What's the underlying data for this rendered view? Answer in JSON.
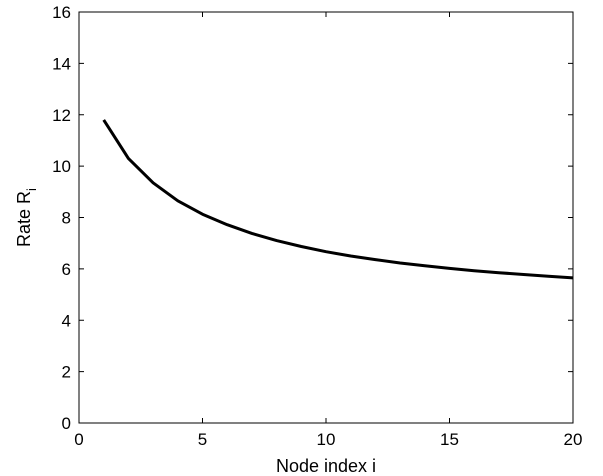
{
  "chart_data": {
    "type": "line",
    "xlabel": "Node index i",
    "ylabel": {
      "main": "Rate R",
      "subscript": "i"
    },
    "xlim": [
      0,
      20
    ],
    "ylim": [
      0,
      16
    ],
    "xticks": [
      0,
      5,
      10,
      15,
      20
    ],
    "xtick_labels": [
      "0",
      "5",
      "10",
      "15",
      "20"
    ],
    "yticks": [
      0,
      2,
      4,
      6,
      8,
      10,
      12,
      14,
      16
    ],
    "ytick_labels": [
      "0",
      "2",
      "4",
      "6",
      "8",
      "10",
      "12",
      "14",
      "16"
    ],
    "grid": false,
    "line_color": "#000000",
    "series": [
      {
        "x": [
          1,
          2,
          3,
          4,
          5,
          6,
          7,
          8,
          9,
          10,
          11,
          12,
          13,
          14,
          15,
          16,
          17,
          18,
          19,
          20
        ],
        "y": [
          11.8,
          10.3,
          9.35,
          8.65,
          8.13,
          7.72,
          7.38,
          7.1,
          6.87,
          6.67,
          6.5,
          6.36,
          6.23,
          6.12,
          6.02,
          5.93,
          5.85,
          5.78,
          5.71,
          5.65
        ]
      }
    ]
  }
}
